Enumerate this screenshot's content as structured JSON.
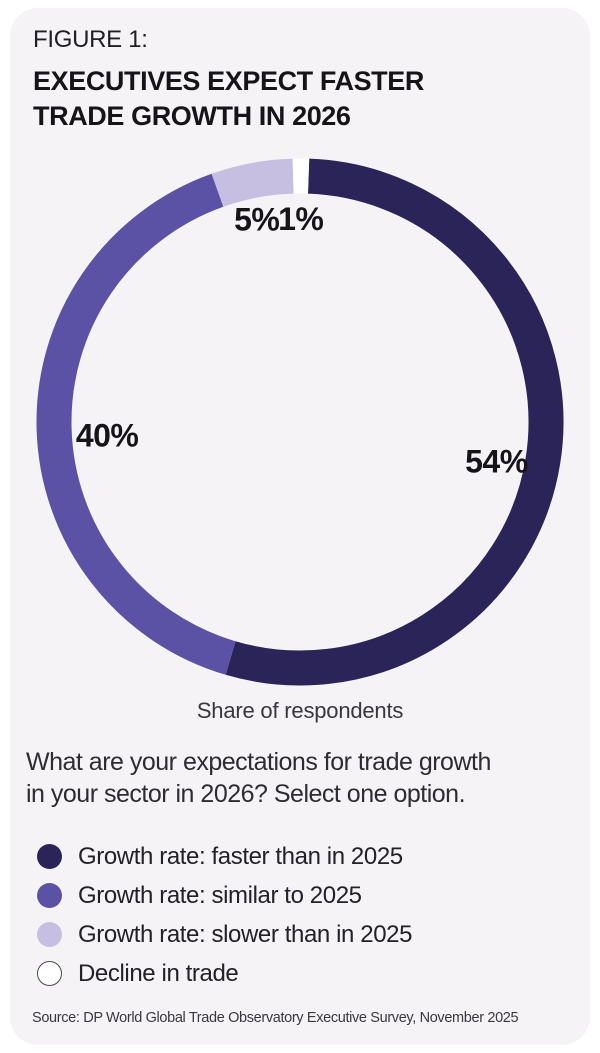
{
  "figure": {
    "label": "FIGURE 1:",
    "title_lines": [
      "EXECUTIVES EXPECT FASTER",
      "TRADE GROWTH IN 2026"
    ]
  },
  "chart_data": {
    "type": "pie",
    "subtype": "donut",
    "categories": [
      "Growth rate: faster than in 2025",
      "Growth rate: similar to 2025",
      "Growth rate: slower than in 2025",
      "Decline in trade"
    ],
    "values": [
      54,
      40,
      5,
      1
    ],
    "value_labels": [
      "54%",
      "40%",
      "5%",
      "1%"
    ],
    "colors": [
      "#2b2458",
      "#5b52a5",
      "#c6bfe2",
      "#ffffff"
    ],
    "unit": "%",
    "caption": "Share of respondents",
    "direction": "clockwise",
    "start_angle_deg": 2,
    "legend_position": "bottom-left"
  },
  "question_lines": [
    "What are your expectations for trade growth",
    "in your sector in 2026? Select one option."
  ],
  "source": "Source: DP World Global Trade Observatory Executive Survey, November 2025",
  "theme": {
    "page_bg": "#ffffff",
    "card_bg": "#f5f3f6",
    "text_color": "#171419",
    "white_swatch_outline": "#4a4a4a"
  }
}
